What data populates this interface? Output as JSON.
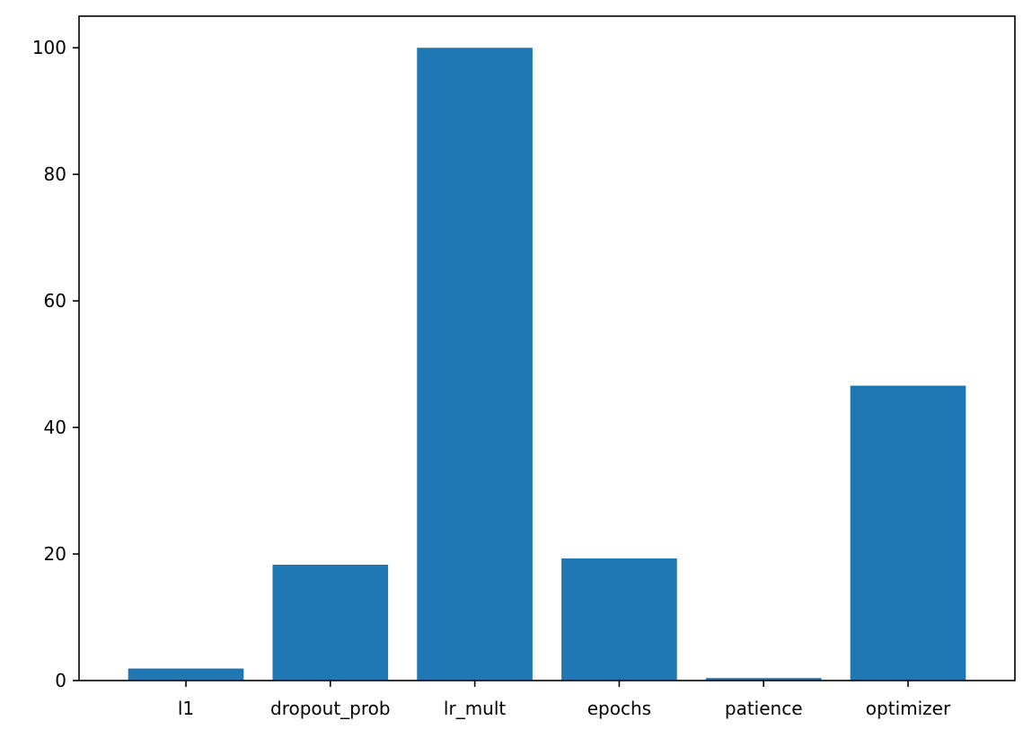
{
  "chart_data": {
    "type": "bar",
    "categories": [
      "l1",
      "dropout_prob",
      "lr_mult",
      "epochs",
      "patience",
      "optimizer"
    ],
    "values": [
      1.9,
      18.3,
      100.0,
      19.3,
      0.4,
      46.6
    ],
    "title": "",
    "xlabel": "",
    "ylabel": "",
    "ylim": [
      0,
      105
    ],
    "yticks": [
      0,
      20,
      40,
      60,
      80,
      100
    ],
    "grid": false,
    "legend": "none",
    "bar_color": "#1f77b4"
  }
}
